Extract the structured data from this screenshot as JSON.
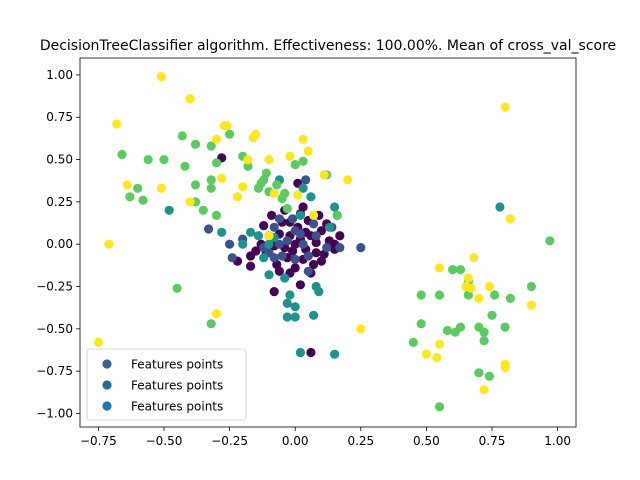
{
  "chart_data": {
    "type": "scatter",
    "title": "DecisionTreeClassifier algorithm. Effectiveness: 100.00%. Mean of cross_val_score",
    "xlabel": "",
    "ylabel": "",
    "xlim": [
      -0.82,
      1.07
    ],
    "ylim": [
      -1.08,
      1.1
    ],
    "x_ticks": [
      -0.75,
      -0.5,
      -0.25,
      0.0,
      0.25,
      0.5,
      0.75,
      1.0
    ],
    "x_tick_labels": [
      "−0.75",
      "−0.50",
      "−0.25",
      "0.00",
      "0.25",
      "0.50",
      "0.75",
      "1.00"
    ],
    "y_ticks": [
      -1.0,
      -0.75,
      -0.5,
      -0.25,
      0.0,
      0.25,
      0.5,
      0.75,
      1.0
    ],
    "y_tick_labels": [
      "−1.00",
      "−0.75",
      "−0.50",
      "−0.25",
      "0.00",
      "0.25",
      "0.50",
      "0.75",
      "1.00"
    ],
    "grid": false,
    "legend": {
      "placement": "lower-left",
      "entries": [
        {
          "label": "Features points",
          "color": "#35638c"
        },
        {
          "label": "Features points",
          "color": "#2e6b8e"
        },
        {
          "label": "Features points",
          "color": "#1f77b4"
        }
      ]
    },
    "colormap": [
      "#440154",
      "#3b528b",
      "#21918c",
      "#5ec962",
      "#fde725"
    ],
    "points": [
      [
        0.0,
        0.0,
        0
      ],
      [
        0.02,
        0.03,
        0
      ],
      [
        -0.02,
        0.05,
        0
      ],
      [
        0.04,
        -0.03,
        0
      ],
      [
        -0.04,
        -0.02,
        0
      ],
      [
        0.01,
        0.1,
        0
      ],
      [
        0.06,
        0.05,
        0
      ],
      [
        -0.06,
        0.06,
        0
      ],
      [
        0.03,
        -0.09,
        0
      ],
      [
        -0.03,
        -0.08,
        0
      ],
      [
        0.08,
        0.01,
        0
      ],
      [
        -0.08,
        -0.01,
        0
      ],
      [
        0.1,
        0.08,
        0
      ],
      [
        -0.1,
        0.05,
        0
      ],
      [
        0.05,
        0.14,
        0
      ],
      [
        -0.05,
        0.13,
        0
      ],
      [
        0.11,
        -0.06,
        0
      ],
      [
        -0.11,
        -0.05,
        0
      ],
      [
        0.0,
        -0.14,
        0
      ],
      [
        0.07,
        -0.12,
        0
      ],
      [
        -0.07,
        -0.12,
        0
      ],
      [
        0.13,
        0.02,
        0
      ],
      [
        -0.13,
        0.0,
        0
      ],
      [
        0.02,
        0.18,
        0
      ],
      [
        -0.02,
        -0.17,
        0
      ],
      [
        0.15,
        -0.03,
        0
      ],
      [
        -0.15,
        -0.04,
        0
      ],
      [
        0.09,
        0.17,
        0
      ],
      [
        -0.09,
        0.17,
        0
      ],
      [
        0.04,
        0.07,
        0
      ],
      [
        -0.01,
        -0.04,
        0
      ],
      [
        0.12,
        0.12,
        0
      ],
      [
        -0.12,
        0.11,
        0
      ],
      [
        0.03,
        0.22,
        0
      ],
      [
        -0.04,
        0.2,
        0
      ],
      [
        0.17,
        0.05,
        0
      ],
      [
        -0.17,
        -0.07,
        0
      ],
      [
        0.06,
        -0.17,
        0
      ],
      [
        -0.06,
        -0.16,
        0
      ],
      [
        0.01,
        0.36,
        0
      ],
      [
        -0.28,
        0.51,
        0
      ],
      [
        -0.22,
        -0.1,
        0
      ],
      [
        -0.17,
        -0.13,
        0
      ],
      [
        -0.08,
        -0.28,
        0
      ],
      [
        0.02,
        -0.24,
        0
      ],
      [
        0.06,
        -0.64,
        0
      ],
      [
        0.15,
        0.0,
        0
      ],
      [
        0.08,
        -0.05,
        0
      ],
      [
        -0.02,
        0.13,
        0
      ],
      [
        0.1,
        -0.1,
        0
      ],
      [
        -0.08,
        -0.08,
        1
      ],
      [
        0.05,
        -0.07,
        1
      ],
      [
        -0.05,
        -0.07,
        1
      ],
      [
        0.08,
        0.05,
        1
      ],
      [
        -0.08,
        0.1,
        1
      ],
      [
        0.0,
        0.08,
        1
      ],
      [
        0.12,
        -0.02,
        1
      ],
      [
        -0.12,
        -0.02,
        1
      ],
      [
        0.04,
        0.38,
        1
      ],
      [
        -0.1,
        -0.05,
        1
      ],
      [
        -0.03,
        0.02,
        1
      ],
      [
        0.03,
        0.0,
        1
      ],
      [
        -0.06,
        0.0,
        1
      ],
      [
        0.17,
        -0.02,
        1
      ],
      [
        -0.2,
        0.03,
        1
      ],
      [
        0.07,
        0.12,
        1
      ],
      [
        0.14,
        0.1,
        1
      ],
      [
        -0.24,
        -0.08,
        1
      ],
      [
        -0.33,
        0.09,
        1
      ],
      [
        0.05,
        -0.16,
        1
      ],
      [
        0.0,
        -0.09,
        1
      ],
      [
        -0.01,
        0.15,
        1
      ],
      [
        0.02,
        0.06,
        1
      ],
      [
        -0.06,
        0.15,
        1
      ],
      [
        0.25,
        -0.02,
        1
      ],
      [
        -0.25,
        0.0,
        1
      ],
      [
        -0.48,
        0.2,
        2
      ],
      [
        -0.28,
        0.07,
        2
      ],
      [
        -0.2,
        0.0,
        2
      ],
      [
        -0.14,
        0.05,
        2
      ],
      [
        -0.17,
        0.07,
        2
      ],
      [
        -0.1,
        0.0,
        2
      ],
      [
        -0.08,
        0.04,
        2
      ],
      [
        0.03,
        0.33,
        2
      ],
      [
        0.02,
        0.17,
        2
      ],
      [
        0.06,
        0.28,
        2
      ],
      [
        0.15,
        0.22,
        2
      ],
      [
        0.16,
        0.17,
        2
      ],
      [
        0.13,
        0.1,
        2
      ],
      [
        -0.04,
        -0.2,
        2
      ],
      [
        -0.02,
        -0.3,
        2
      ],
      [
        -0.03,
        -0.35,
        2
      ],
      [
        0.0,
        -0.37,
        2
      ],
      [
        -0.03,
        -0.43,
        2
      ],
      [
        0.0,
        -0.43,
        2
      ],
      [
        0.02,
        -0.64,
        2
      ],
      [
        0.15,
        -0.65,
        2
      ],
      [
        0.07,
        -0.42,
        2
      ],
      [
        0.08,
        -0.25,
        2
      ],
      [
        0.09,
        -0.28,
        2
      ],
      [
        -0.12,
        -0.08,
        2
      ],
      [
        -0.1,
        -0.18,
        2
      ],
      [
        0.78,
        0.22,
        2
      ],
      [
        -0.06,
        0.38,
        2
      ],
      [
        -0.66,
        0.53,
        3
      ],
      [
        -0.6,
        0.33,
        3
      ],
      [
        -0.58,
        0.26,
        3
      ],
      [
        -0.63,
        0.28,
        3
      ],
      [
        -0.5,
        0.5,
        3
      ],
      [
        -0.43,
        0.64,
        3
      ],
      [
        -0.38,
        0.59,
        3
      ],
      [
        -0.32,
        0.58,
        3
      ],
      [
        -0.3,
        0.48,
        3
      ],
      [
        -0.32,
        0.38,
        3
      ],
      [
        -0.32,
        0.33,
        3
      ],
      [
        -0.38,
        0.35,
        3
      ],
      [
        -0.35,
        0.2,
        3
      ],
      [
        -0.3,
        0.17,
        3
      ],
      [
        -0.38,
        0.25,
        3
      ],
      [
        -0.25,
        0.65,
        3
      ],
      [
        -0.2,
        0.52,
        3
      ],
      [
        -0.18,
        0.46,
        3
      ],
      [
        -0.12,
        0.38,
        3
      ],
      [
        -0.11,
        0.42,
        3
      ],
      [
        -0.13,
        0.36,
        3
      ],
      [
        -0.14,
        0.33,
        3
      ],
      [
        -0.1,
        0.31,
        3
      ],
      [
        -0.07,
        0.35,
        3
      ],
      [
        -0.05,
        0.27,
        3
      ],
      [
        -0.03,
        0.21,
        3
      ],
      [
        -0.42,
        0.46,
        3
      ],
      [
        -0.45,
        -0.26,
        3
      ],
      [
        -0.32,
        -0.47,
        3
      ],
      [
        0.0,
        0.47,
        3
      ],
      [
        -0.04,
        0.3,
        3
      ],
      [
        0.12,
        0.41,
        3
      ],
      [
        0.03,
        0.49,
        3
      ],
      [
        0.6,
        -0.15,
        3
      ],
      [
        0.55,
        -0.3,
        3
      ],
      [
        0.48,
        -0.3,
        3
      ],
      [
        0.48,
        -0.47,
        3
      ],
      [
        0.61,
        -0.52,
        3
      ],
      [
        0.63,
        -0.49,
        3
      ],
      [
        0.66,
        -0.3,
        3
      ],
      [
        0.7,
        -0.49,
        3
      ],
      [
        0.72,
        -0.52,
        3
      ],
      [
        0.75,
        -0.42,
        3
      ],
      [
        0.76,
        -0.3,
        3
      ],
      [
        0.8,
        -0.49,
        3
      ],
      [
        0.82,
        -0.32,
        3
      ],
      [
        0.9,
        -0.25,
        3
      ],
      [
        0.97,
        0.02,
        3
      ],
      [
        0.55,
        -0.96,
        3
      ],
      [
        0.7,
        -0.76,
        3
      ],
      [
        0.74,
        -0.78,
        3
      ],
      [
        0.72,
        -0.57,
        3
      ],
      [
        0.45,
        -0.58,
        3
      ],
      [
        0.58,
        -0.51,
        3
      ],
      [
        0.63,
        -0.15,
        3
      ],
      [
        0.66,
        -0.22,
        3
      ],
      [
        0.16,
        0.17,
        3
      ],
      [
        -0.56,
        0.5,
        3
      ],
      [
        -0.75,
        -0.58,
        4
      ],
      [
        -0.71,
        0.0,
        4
      ],
      [
        -0.68,
        0.71,
        4
      ],
      [
        -0.64,
        0.35,
        4
      ],
      [
        -0.51,
        0.99,
        4
      ],
      [
        -0.51,
        0.33,
        4
      ],
      [
        -0.4,
        0.86,
        4
      ],
      [
        -0.4,
        0.25,
        4
      ],
      [
        -0.3,
        0.62,
        4
      ],
      [
        -0.27,
        0.7,
        4
      ],
      [
        -0.22,
        0.28,
        4
      ],
      [
        -0.28,
        0.39,
        4
      ],
      [
        -0.3,
        -0.41,
        4
      ],
      [
        -0.2,
        0.34,
        4
      ],
      [
        -0.15,
        0.65,
        4
      ],
      [
        -0.16,
        0.63,
        4
      ],
      [
        -0.1,
        0.5,
        4
      ],
      [
        -0.08,
        0.3,
        4
      ],
      [
        -0.02,
        0.52,
        4
      ],
      [
        0.03,
        0.62,
        4
      ],
      [
        0.07,
        0.17,
        4
      ],
      [
        0.2,
        0.38,
        4
      ],
      [
        -0.1,
        0.05,
        4
      ],
      [
        0.25,
        -0.5,
        4
      ],
      [
        0.5,
        -0.65,
        4
      ],
      [
        0.54,
        -0.67,
        4
      ],
      [
        0.55,
        -0.59,
        4
      ],
      [
        0.55,
        -0.14,
        4
      ],
      [
        0.65,
        -0.25,
        4
      ],
      [
        0.66,
        -0.2,
        4
      ],
      [
        0.67,
        -0.26,
        4
      ],
      [
        0.68,
        -0.08,
        4
      ],
      [
        0.7,
        -0.32,
        4
      ],
      [
        0.72,
        -0.86,
        4
      ],
      [
        0.74,
        -0.25,
        4
      ],
      [
        0.8,
        -0.71,
        4
      ],
      [
        0.8,
        -0.73,
        4
      ],
      [
        0.82,
        0.15,
        4
      ],
      [
        0.9,
        -0.36,
        4
      ],
      [
        0.8,
        0.81,
        4
      ],
      [
        -0.18,
        0.5,
        4
      ],
      [
        -0.26,
        0.7,
        4
      ],
      [
        0.11,
        0.41,
        4
      ],
      [
        0.05,
        0.55,
        4
      ],
      [
        0.01,
        0.29,
        4
      ]
    ]
  }
}
